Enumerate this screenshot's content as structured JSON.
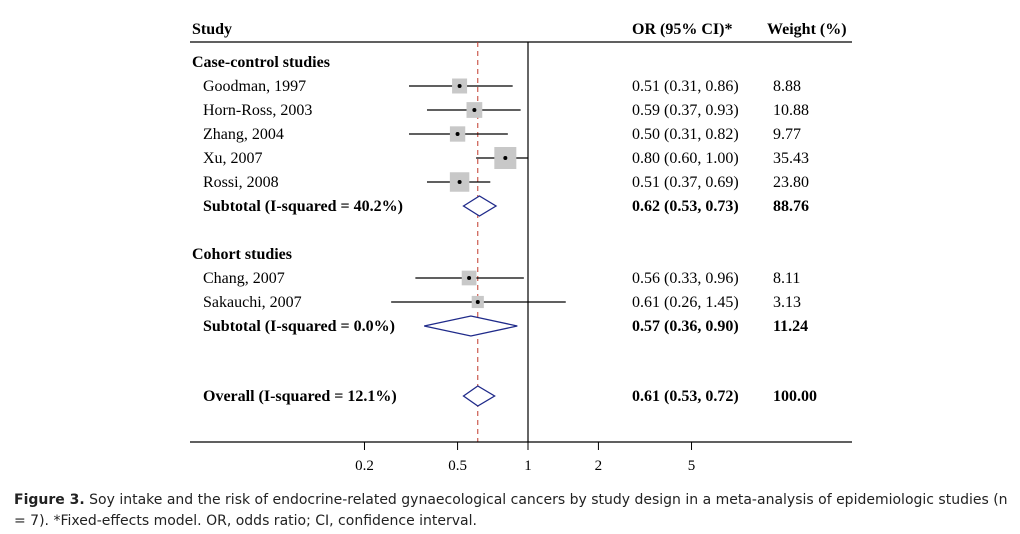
{
  "chart_data": {
    "type": "forest",
    "columns": {
      "study": "Study",
      "or_ci": "OR (95% CI)*",
      "weight": "Weight (%)"
    },
    "x_scale": "log",
    "x_ticks": [
      0.2,
      0.5,
      1,
      2,
      5
    ],
    "x_tick_labels": [
      "0.2",
      "0.5",
      "1",
      "2",
      "5"
    ],
    "null_line": 1,
    "overall_reference": 0.61,
    "groups": [
      {
        "name": "Case-control studies",
        "studies": [
          {
            "label": "Goodman, 1997",
            "or": 0.51,
            "lo": 0.31,
            "hi": 0.86,
            "or_text": "0.51 (0.31, 0.86)",
            "weight": "8.88"
          },
          {
            "label": "Horn-Ross, 2003",
            "or": 0.59,
            "lo": 0.37,
            "hi": 0.93,
            "or_text": "0.59 (0.37, 0.93)",
            "weight": "10.88"
          },
          {
            "label": "Zhang, 2004",
            "or": 0.5,
            "lo": 0.31,
            "hi": 0.82,
            "or_text": "0.50 (0.31, 0.82)",
            "weight": "9.77"
          },
          {
            "label": "Xu, 2007",
            "or": 0.8,
            "lo": 0.6,
            "hi": 1.0,
            "or_text": "0.80 (0.60, 1.00)",
            "weight": "35.43"
          },
          {
            "label": "Rossi, 2008",
            "or": 0.51,
            "lo": 0.37,
            "hi": 0.69,
            "or_text": "0.51 (0.37, 0.69)",
            "weight": "23.80"
          }
        ],
        "subtotal": {
          "label": "Subtotal (I-squared = 40.2%)",
          "or": 0.62,
          "lo": 0.53,
          "hi": 0.73,
          "or_text": "0.62 (0.53, 0.73)",
          "weight": "88.76"
        }
      },
      {
        "name": "Cohort studies",
        "studies": [
          {
            "label": "Chang, 2007",
            "or": 0.56,
            "lo": 0.33,
            "hi": 0.96,
            "or_text": "0.56 (0.33, 0.96)",
            "weight": "8.11"
          },
          {
            "label": "Sakauchi, 2007",
            "or": 0.61,
            "lo": 0.26,
            "hi": 1.45,
            "or_text": "0.61 (0.26, 1.45)",
            "weight": "3.13"
          }
        ],
        "subtotal": {
          "label": "Subtotal  (I-squared = 0.0%)",
          "or": 0.57,
          "lo": 0.36,
          "hi": 0.9,
          "or_text": "0.57 (0.36, 0.90)",
          "weight": "11.24"
        }
      }
    ],
    "overall": {
      "label": "Overall (I-squared = 12.1%)",
      "or": 0.61,
      "lo": 0.53,
      "hi": 0.72,
      "or_text": "0.61 (0.53, 0.72)",
      "weight": "100.00"
    }
  },
  "caption": {
    "label": "Figure 3.",
    "text": " Soy intake and the risk of endocrine-related gynaecological cancers by study design in a meta-analysis of epidemiologic studies (n = 7). *Fixed-effects model. OR, odds ratio; CI, confidence interval."
  },
  "colors": {
    "diamond": "#1f2a8a",
    "reference_line": "#c0392b",
    "box": "#c8c8c8",
    "axis": "#000000"
  }
}
